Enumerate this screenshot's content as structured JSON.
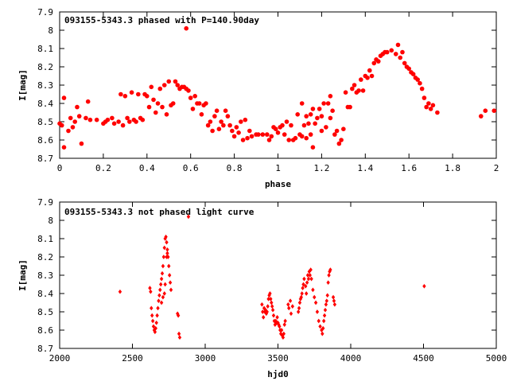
{
  "colors": {
    "points": "#ff0000",
    "axes": "#000000",
    "background": "#ffffff"
  },
  "chart_data": [
    {
      "type": "scatter",
      "title": "093155-5343.3 phased with P=140.90day",
      "xlabel": "phase",
      "ylabel": "I[mag]",
      "xlim": [
        0,
        2
      ],
      "ylim": [
        8.7,
        7.9
      ],
      "y_inverted": true,
      "grid": false,
      "marker": "filled-circle",
      "x_ticks": [
        0,
        0.2,
        0.4,
        0.6,
        0.8,
        1,
        1.2,
        1.4,
        1.6,
        1.8,
        2
      ],
      "x_tick_labels": [
        "0",
        "0.2",
        "0.4",
        "0.6",
        "0.8",
        "1",
        "1.2",
        "1.4",
        "1.6",
        "1.8",
        "2"
      ],
      "y_ticks": [
        7.9,
        8,
        8.1,
        8.2,
        8.3,
        8.4,
        8.5,
        8.6,
        8.7
      ],
      "y_tick_labels": [
        "7.9",
        "8",
        "8.1",
        "8.2",
        "8.3",
        "8.4",
        "8.5",
        "8.6",
        "8.7"
      ],
      "points": [
        [
          0.0,
          8.51
        ],
        [
          0.01,
          8.52
        ],
        [
          0.02,
          8.37
        ],
        [
          0.02,
          8.64
        ],
        [
          0.04,
          8.55
        ],
        [
          0.05,
          8.48
        ],
        [
          0.06,
          8.53
        ],
        [
          0.07,
          8.5
        ],
        [
          0.08,
          8.42
        ],
        [
          0.09,
          8.47
        ],
        [
          0.1,
          8.62
        ],
        [
          0.12,
          8.48
        ],
        [
          0.13,
          8.39
        ],
        [
          0.14,
          8.49
        ],
        [
          0.17,
          8.49
        ],
        [
          0.2,
          8.51
        ],
        [
          0.21,
          8.5
        ],
        [
          0.22,
          8.49
        ],
        [
          0.24,
          8.48
        ],
        [
          0.25,
          8.51
        ],
        [
          0.27,
          8.5
        ],
        [
          0.28,
          8.35
        ],
        [
          0.29,
          8.52
        ],
        [
          0.3,
          8.36
        ],
        [
          0.31,
          8.48
        ],
        [
          0.32,
          8.5
        ],
        [
          0.33,
          8.34
        ],
        [
          0.34,
          8.49
        ],
        [
          0.35,
          8.5
        ],
        [
          0.36,
          8.35
        ],
        [
          0.37,
          8.48
        ],
        [
          0.38,
          8.49
        ],
        [
          0.39,
          8.35
        ],
        [
          0.4,
          8.36
        ],
        [
          0.41,
          8.42
        ],
        [
          0.42,
          8.31
        ],
        [
          0.43,
          8.38
        ],
        [
          0.44,
          8.45
        ],
        [
          0.45,
          8.4
        ],
        [
          0.46,
          8.32
        ],
        [
          0.47,
          8.42
        ],
        [
          0.48,
          8.3
        ],
        [
          0.49,
          8.46
        ],
        [
          0.5,
          8.28
        ],
        [
          0.51,
          8.41
        ],
        [
          0.52,
          8.4
        ],
        [
          0.53,
          8.28
        ],
        [
          0.54,
          8.3
        ],
        [
          0.55,
          8.32
        ],
        [
          0.56,
          8.31
        ],
        [
          0.57,
          8.31
        ],
        [
          0.58,
          8.32
        ],
        [
          0.58,
          7.99
        ],
        [
          0.59,
          8.33
        ],
        [
          0.6,
          8.37
        ],
        [
          0.61,
          8.43
        ],
        [
          0.62,
          8.36
        ],
        [
          0.63,
          8.4
        ],
        [
          0.64,
          8.4
        ],
        [
          0.65,
          8.46
        ],
        [
          0.66,
          8.41
        ],
        [
          0.67,
          8.4
        ],
        [
          0.68,
          8.52
        ],
        [
          0.69,
          8.5
        ],
        [
          0.7,
          8.55
        ],
        [
          0.71,
          8.47
        ],
        [
          0.72,
          8.44
        ],
        [
          0.73,
          8.54
        ],
        [
          0.74,
          8.5
        ],
        [
          0.75,
          8.52
        ],
        [
          0.76,
          8.44
        ],
        [
          0.77,
          8.47
        ],
        [
          0.78,
          8.52
        ],
        [
          0.79,
          8.55
        ],
        [
          0.8,
          8.58
        ],
        [
          0.81,
          8.53
        ],
        [
          0.82,
          8.56
        ],
        [
          0.83,
          8.5
        ],
        [
          0.84,
          8.6
        ],
        [
          0.85,
          8.49
        ],
        [
          0.86,
          8.59
        ],
        [
          0.87,
          8.55
        ],
        [
          0.88,
          8.58
        ],
        [
          0.9,
          8.57
        ],
        [
          0.91,
          8.57
        ],
        [
          0.93,
          8.57
        ],
        [
          0.95,
          8.57
        ],
        [
          0.96,
          8.6
        ],
        [
          0.97,
          8.58
        ],
        [
          0.98,
          8.53
        ],
        [
          0.99,
          8.54
        ],
        [
          1.0,
          8.56
        ],
        [
          1.01,
          8.53
        ],
        [
          1.02,
          8.52
        ],
        [
          1.03,
          8.57
        ],
        [
          1.04,
          8.5
        ],
        [
          1.05,
          8.6
        ],
        [
          1.06,
          8.52
        ],
        [
          1.07,
          8.6
        ],
        [
          1.08,
          8.59
        ],
        [
          1.09,
          8.46
        ],
        [
          1.1,
          8.57
        ],
        [
          1.11,
          8.4
        ],
        [
          1.11,
          8.58
        ],
        [
          1.12,
          8.52
        ],
        [
          1.13,
          8.47
        ],
        [
          1.13,
          8.59
        ],
        [
          1.14,
          8.51
        ],
        [
          1.15,
          8.46
        ],
        [
          1.15,
          8.57
        ],
        [
          1.16,
          8.43
        ],
        [
          1.16,
          8.64
        ],
        [
          1.17,
          8.51
        ],
        [
          1.18,
          8.48
        ],
        [
          1.19,
          8.43
        ],
        [
          1.2,
          8.47
        ],
        [
          1.2,
          8.55
        ],
        [
          1.21,
          8.4
        ],
        [
          1.22,
          8.53
        ],
        [
          1.23,
          8.4
        ],
        [
          1.24,
          8.48
        ],
        [
          1.24,
          8.36
        ],
        [
          1.25,
          8.44
        ],
        [
          1.26,
          8.57
        ],
        [
          1.27,
          8.55
        ],
        [
          1.28,
          8.62
        ],
        [
          1.29,
          8.6
        ],
        [
          1.3,
          8.54
        ],
        [
          1.31,
          8.34
        ],
        [
          1.32,
          8.42
        ],
        [
          1.33,
          8.42
        ],
        [
          1.34,
          8.32
        ],
        [
          1.35,
          8.3
        ],
        [
          1.36,
          8.34
        ],
        [
          1.37,
          8.33
        ],
        [
          1.38,
          8.27
        ],
        [
          1.39,
          8.33
        ],
        [
          1.4,
          8.25
        ],
        [
          1.41,
          8.26
        ],
        [
          1.42,
          8.22
        ],
        [
          1.43,
          8.25
        ],
        [
          1.44,
          8.18
        ],
        [
          1.45,
          8.16
        ],
        [
          1.46,
          8.17
        ],
        [
          1.47,
          8.14
        ],
        [
          1.48,
          8.13
        ],
        [
          1.49,
          8.12
        ],
        [
          1.5,
          8.12
        ],
        [
          1.52,
          8.11
        ],
        [
          1.54,
          8.13
        ],
        [
          1.55,
          8.08
        ],
        [
          1.56,
          8.15
        ],
        [
          1.57,
          8.12
        ],
        [
          1.58,
          8.18
        ],
        [
          1.59,
          8.2
        ],
        [
          1.6,
          8.21
        ],
        [
          1.61,
          8.23
        ],
        [
          1.62,
          8.24
        ],
        [
          1.63,
          8.26
        ],
        [
          1.64,
          8.27
        ],
        [
          1.65,
          8.29
        ],
        [
          1.66,
          8.32
        ],
        [
          1.67,
          8.37
        ],
        [
          1.68,
          8.42
        ],
        [
          1.69,
          8.4
        ],
        [
          1.7,
          8.43
        ],
        [
          1.71,
          8.41
        ],
        [
          1.73,
          8.45
        ],
        [
          1.93,
          8.47
        ],
        [
          1.95,
          8.44
        ],
        [
          1.99,
          8.44
        ]
      ]
    },
    {
      "type": "scatter",
      "title": "093155-5343.3 not phased light curve",
      "xlabel": "hjd0",
      "ylabel": "I[mag]",
      "xlim": [
        2000,
        5000
      ],
      "ylim": [
        8.7,
        7.9
      ],
      "y_inverted": true,
      "grid": false,
      "marker": "small-diamond",
      "x_ticks": [
        2000,
        2500,
        3000,
        3500,
        4000,
        4500,
        5000
      ],
      "x_tick_labels": [
        "2000",
        "2500",
        "3000",
        "3500",
        "4000",
        "4500",
        "5000"
      ],
      "y_ticks": [
        7.9,
        8,
        8.1,
        8.2,
        8.3,
        8.4,
        8.5,
        8.6,
        8.7
      ],
      "y_tick_labels": [
        "7.9",
        "8",
        "8.1",
        "8.2",
        "8.3",
        "8.4",
        "8.5",
        "8.6",
        "8.7"
      ],
      "points": [
        [
          2415,
          8.39
        ],
        [
          2620,
          8.37
        ],
        [
          2625,
          8.39
        ],
        [
          2630,
          8.48
        ],
        [
          2635,
          8.52
        ],
        [
          2640,
          8.55
        ],
        [
          2645,
          8.58
        ],
        [
          2650,
          8.6
        ],
        [
          2655,
          8.61
        ],
        [
          2660,
          8.59
        ],
        [
          2665,
          8.56
        ],
        [
          2670,
          8.52
        ],
        [
          2675,
          8.48
        ],
        [
          2680,
          8.44
        ],
        [
          2685,
          8.41
        ],
        [
          2690,
          8.38
        ],
        [
          2695,
          8.35
        ],
        [
          2700,
          8.32
        ],
        [
          2705,
          8.29
        ],
        [
          2710,
          8.25
        ],
        [
          2715,
          8.2
        ],
        [
          2720,
          8.15
        ],
        [
          2725,
          8.1
        ],
        [
          2730,
          8.09
        ],
        [
          2735,
          8.12
        ],
        [
          2740,
          8.16
        ],
        [
          2745,
          8.2
        ],
        [
          2750,
          8.25
        ],
        [
          2755,
          8.3
        ],
        [
          2760,
          8.34
        ],
        [
          2765,
          8.38
        ],
        [
          2700,
          8.45
        ],
        [
          2710,
          8.42
        ],
        [
          2720,
          8.4
        ],
        [
          2725,
          8.35
        ],
        [
          2735,
          8.2
        ],
        [
          2740,
          8.18
        ],
        [
          2810,
          8.51
        ],
        [
          2815,
          8.52
        ],
        [
          2820,
          8.62
        ],
        [
          2825,
          8.64
        ],
        [
          2885,
          7.98
        ],
        [
          3390,
          8.46
        ],
        [
          3395,
          8.5
        ],
        [
          3400,
          8.53
        ],
        [
          3405,
          8.48
        ],
        [
          3410,
          8.5
        ],
        [
          3415,
          8.49
        ],
        [
          3420,
          8.51
        ],
        [
          3425,
          8.5
        ],
        [
          3430,
          8.47
        ],
        [
          3435,
          8.43
        ],
        [
          3440,
          8.41
        ],
        [
          3445,
          8.4
        ],
        [
          3450,
          8.43
        ],
        [
          3455,
          8.45
        ],
        [
          3460,
          8.47
        ],
        [
          3465,
          8.49
        ],
        [
          3470,
          8.52
        ],
        [
          3475,
          8.55
        ],
        [
          3480,
          8.57
        ],
        [
          3485,
          8.55
        ],
        [
          3490,
          8.56
        ],
        [
          3495,
          8.53
        ],
        [
          3500,
          8.56
        ],
        [
          3505,
          8.57
        ],
        [
          3510,
          8.58
        ],
        [
          3515,
          8.6
        ],
        [
          3520,
          8.62
        ],
        [
          3525,
          8.6
        ],
        [
          3530,
          8.63
        ],
        [
          3535,
          8.64
        ],
        [
          3540,
          8.62
        ],
        [
          3545,
          8.57
        ],
        [
          3550,
          8.55
        ],
        [
          3570,
          8.46
        ],
        [
          3575,
          8.48
        ],
        [
          3585,
          8.44
        ],
        [
          3590,
          8.51
        ],
        [
          3600,
          8.47
        ],
        [
          3640,
          8.5
        ],
        [
          3645,
          8.48
        ],
        [
          3650,
          8.45
        ],
        [
          3655,
          8.43
        ],
        [
          3660,
          8.42
        ],
        [
          3665,
          8.4
        ],
        [
          3670,
          8.37
        ],
        [
          3675,
          8.35
        ],
        [
          3680,
          8.32
        ],
        [
          3690,
          8.36
        ],
        [
          3695,
          8.4
        ],
        [
          3700,
          8.34
        ],
        [
          3705,
          8.3
        ],
        [
          3710,
          8.32
        ],
        [
          3715,
          8.28
        ],
        [
          3720,
          8.3
        ],
        [
          3725,
          8.27
        ],
        [
          3730,
          8.32
        ],
        [
          3740,
          8.38
        ],
        [
          3750,
          8.42
        ],
        [
          3760,
          8.45
        ],
        [
          3770,
          8.5
        ],
        [
          3780,
          8.55
        ],
        [
          3790,
          8.58
        ],
        [
          3800,
          8.6
        ],
        [
          3805,
          8.62
        ],
        [
          3810,
          8.59
        ],
        [
          3815,
          8.55
        ],
        [
          3820,
          8.52
        ],
        [
          3825,
          8.49
        ],
        [
          3830,
          8.46
        ],
        [
          3835,
          8.44
        ],
        [
          3840,
          8.41
        ],
        [
          3845,
          8.34
        ],
        [
          3850,
          8.3
        ],
        [
          3855,
          8.28
        ],
        [
          3860,
          8.27
        ],
        [
          3880,
          8.42
        ],
        [
          3885,
          8.44
        ],
        [
          3890,
          8.46
        ],
        [
          4505,
          8.36
        ]
      ]
    }
  ]
}
